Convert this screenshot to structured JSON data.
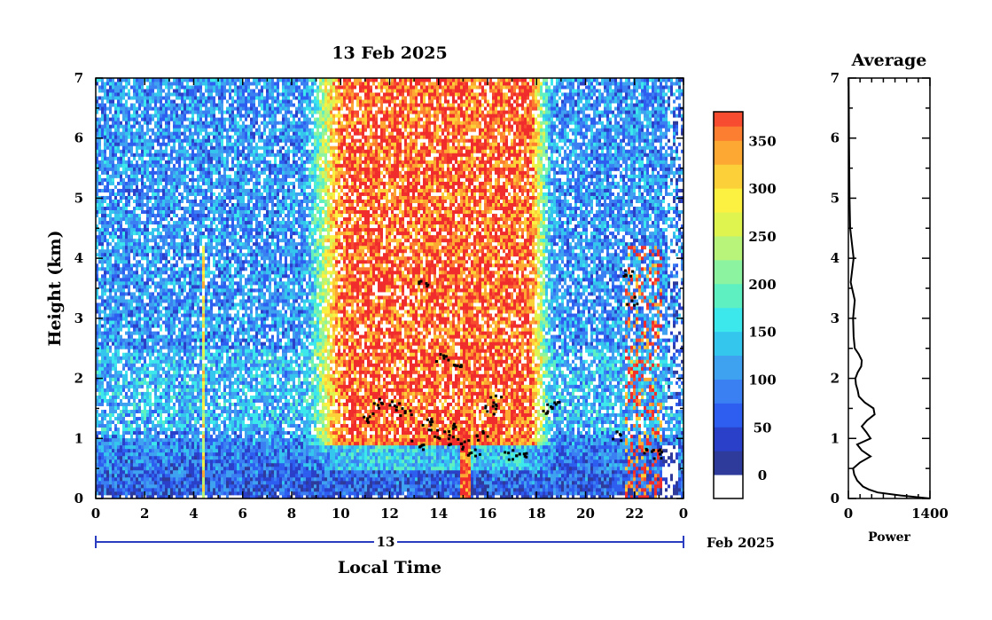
{
  "chart_data": [
    {
      "type": "heatmap",
      "title": "13 Feb 2025",
      "xlabel": "Local Time",
      "ylabel": "Height (km)",
      "x_ticks": [
        "0",
        "2",
        "4",
        "6",
        "8",
        "10",
        "12",
        "14",
        "16",
        "18",
        "20",
        "22",
        "0"
      ],
      "y_ticks": [
        "0",
        "1",
        "2",
        "3",
        "4",
        "5",
        "6",
        "7"
      ],
      "xlim": [
        0,
        24
      ],
      "ylim": [
        0,
        7
      ],
      "day_label": "13",
      "month_year_label": "Feb 2025",
      "colorbar": {
        "ticks": [
          "0",
          "50",
          "100",
          "150",
          "200",
          "250",
          "300",
          "350"
        ],
        "range": [
          -25,
          380
        ],
        "colors": [
          "#ffffff",
          "#2e3b9a",
          "#2a40c8",
          "#2d5ef0",
          "#3a80f2",
          "#3fa2f0",
          "#35c6ee",
          "#3de8ec",
          "#5ef0c0",
          "#8cf4a0",
          "#b8f47a",
          "#e0f450",
          "#fcf040",
          "#fcd038",
          "#fca832",
          "#fc7e30",
          "#f84c30",
          "#f02c2c"
        ],
        "breaks": [
          -25,
          0,
          25,
          50,
          75,
          100,
          125,
          150,
          175,
          200,
          225,
          250,
          275,
          300,
          325,
          350,
          365,
          380
        ]
      },
      "features": {
        "background_level": 100,
        "boundary_layer_top_km": 1.1,
        "afternoon_plume": {
          "start_hour": 9.5,
          "end_hour": 18.2,
          "level": 370
        },
        "cloud_layers_km": [
          1.3,
          1.5,
          2.2
        ]
      }
    },
    {
      "type": "line",
      "title": "Average",
      "xlabel": "Power",
      "x_ticks": [
        "0",
        "1400"
      ],
      "y_ticks": [
        "0",
        "1",
        "2",
        "3",
        "4",
        "5",
        "6",
        "7"
      ],
      "xlim": [
        0,
        1400
      ],
      "ylim": [
        0,
        7
      ],
      "series": [
        {
          "y": [
            0.0,
            0.05,
            0.1,
            0.15,
            0.2,
            0.3,
            0.4,
            0.5,
            0.6,
            0.7,
            0.8,
            0.9,
            1.0,
            1.1,
            1.2,
            1.3,
            1.4,
            1.5,
            1.6,
            1.7,
            1.8,
            1.9,
            2.0,
            2.1,
            2.2,
            2.3,
            2.4,
            2.5,
            2.7,
            3.0,
            3.3,
            3.6,
            4.0,
            4.5,
            5.0,
            5.5,
            6.0,
            6.5,
            7.0
          ],
          "x": [
            1400,
            900,
            500,
            350,
            250,
            150,
            100,
            80,
            200,
            380,
            230,
            150,
            380,
            310,
            230,
            320,
            450,
            430,
            280,
            180,
            160,
            130,
            120,
            160,
            220,
            230,
            180,
            110,
            90,
            80,
            110,
            40,
            90,
            30,
            20,
            15,
            10,
            8,
            5
          ]
        }
      ]
    }
  ]
}
